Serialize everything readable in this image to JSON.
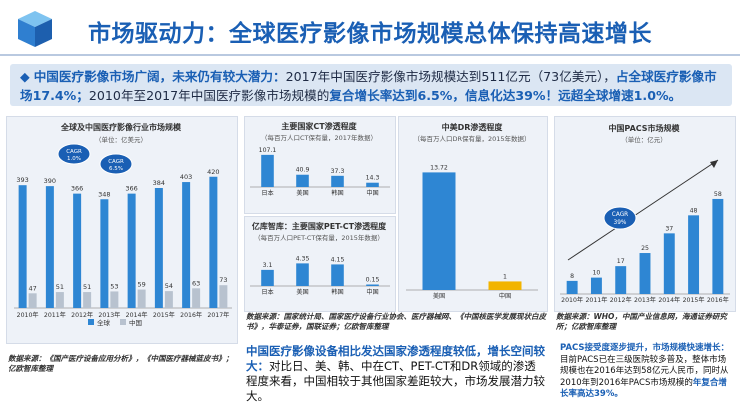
{
  "header": {
    "title": "市场驱动力：全球医疗影像市场规模总体保持高速增长"
  },
  "summary": {
    "lead": "中国医疗影像市场广阔，未来仍有较大潜力：",
    "part1": "2017年中国医疗影像市场规模达到511亿元（73亿美元），",
    "hl1": "占全球医疗影像市场17.4%；",
    "part2": "2010年至2017年中国医疗影像市场规模的",
    "hl2": "复合增长率达到6.5%，信息化达39%！远超全球增速1.0%。"
  },
  "colors": {
    "blue_bar": "#2e86d3",
    "gray_bar": "#b8c2cf",
    "accent": "#1a5fb4",
    "panel_bg": "#eef2f8"
  },
  "chart_data": [
    {
      "id": "market",
      "type": "bar",
      "title": "全球及中国医疗影像行业市场规模",
      "subtitle": "（单位：亿美元）",
      "categories": [
        "2010年",
        "2011年",
        "2012年",
        "2013年",
        "2014年",
        "2015年",
        "2016年",
        "2017年"
      ],
      "series": [
        {
          "name": "全球",
          "values": [
            393,
            390,
            366,
            348,
            366,
            384,
            403,
            420
          ]
        },
        {
          "name": "中国",
          "values": [
            47,
            51,
            51,
            53,
            59,
            54,
            63,
            73
          ]
        }
      ],
      "annotations": [
        "CAGR\n1.0%",
        "CAGR\n6.5%"
      ],
      "ylim": [
        0,
        480
      ]
    },
    {
      "id": "ct",
      "type": "bar",
      "title": "主要国家CT渗透程度",
      "subtitle": "（每百万人口CT保有量，2017年数据）",
      "categories": [
        "日本",
        "美国",
        "韩国",
        "中国"
      ],
      "values": [
        107.1,
        40.9,
        37.3,
        14.3
      ],
      "ylim": [
        0,
        120
      ]
    },
    {
      "id": "dr",
      "type": "bar",
      "title": "中美DR渗透程度",
      "subtitle": "（每百万人口DR保有量，2015年数据）",
      "categories": [
        "美国",
        "中国"
      ],
      "values": [
        13.72,
        1
      ],
      "ylim": [
        0,
        14
      ]
    },
    {
      "id": "petct",
      "type": "bar",
      "title": "亿库智库：主要国家PET-CT渗透程度",
      "subtitle": "（每百万人口PET-CT保有量，2015年数据）",
      "categories": [
        "日本",
        "美国",
        "韩国",
        "中国"
      ],
      "values": [
        3.1,
        4.35,
        4.15,
        0.15
      ],
      "ylim": [
        0,
        5
      ]
    },
    {
      "id": "pacs",
      "type": "bar",
      "title": "中国PACS市场规模",
      "subtitle": "（单位：亿元）",
      "categories": [
        "2010年",
        "2011年",
        "2012年",
        "2013年",
        "2014年",
        "2015年",
        "2016年"
      ],
      "values": [
        8,
        10,
        17,
        25,
        37,
        48,
        58
      ],
      "annotation": "CAGR\n39%",
      "ylim": [
        0,
        72
      ]
    }
  ],
  "sources": {
    "left": "数据来源：《国产医疗设备应用分析》，《中国医疗器械蓝皮书》；亿欧智库整理",
    "middle": "数据来源：国家统计局、国家医疗设备行业协会、医疗器械网、《中国核医学发展现状白皮书》，华泰证券，国联证券；亿欧智库整理",
    "right": "数据来源：WHO，中国产业信息网，海通证券研究所；亿欧智库整理"
  },
  "callout_middle": {
    "hl": "中国医疗影像设备相比发达国家渗透程度较低，增长空间较大：",
    "text": "对比日、美、韩、中在CT、PET-CT和DR领域的渗透程度来看，中国相较于其他国家差距较大，市场发展潜力较大。"
  },
  "callout_right": {
    "hl1": "PACS接受度逐步提升，市场规模快速增长：",
    "text": "目前PACS已在三级医院较多普及，整体市场规模也在2016年达到58亿元人民币，同时从2010年到2016年PACS市场规模的",
    "hl2": "年复合增长率高达39%。"
  }
}
